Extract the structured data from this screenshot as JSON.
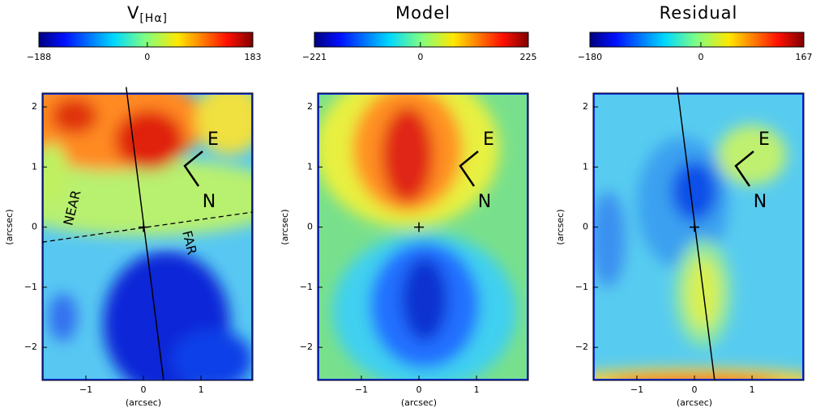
{
  "chart_data": [
    {
      "type": "heatmap",
      "title": "V",
      "title_sub": "[Hα]",
      "colorbar": {
        "range": [
          -188,
          183
        ],
        "ticks": [
          {
            "value": -188,
            "label": "−188"
          },
          0,
          183
        ]
      },
      "xlim": [
        -1.76,
        1.9
      ],
      "ylim": [
        -2.55,
        2.23
      ],
      "xticks": [
        {
          "value": -1,
          "label": "−1"
        },
        0,
        1
      ],
      "yticks": [
        {
          "value": -2,
          "label": "−2"
        },
        {
          "value": -1,
          "label": "−1"
        },
        0,
        1,
        2
      ],
      "xlabel": "(arcsec)",
      "ylabel": "(arcsec)",
      "annotations": [
        "E",
        "N",
        "NEAR",
        "FAR"
      ]
    },
    {
      "type": "heatmap",
      "title": "Model",
      "colorbar": {
        "range": [
          -221,
          225
        ],
        "ticks": [
          {
            "value": -221,
            "label": "−221"
          },
          0,
          225
        ]
      },
      "xlim": [
        -1.76,
        1.9
      ],
      "ylim": [
        -2.55,
        2.23
      ],
      "xticks": [
        {
          "value": -1,
          "label": "−1"
        },
        0,
        1
      ],
      "yticks": [
        {
          "value": -2,
          "label": "−2"
        },
        {
          "value": -1,
          "label": "−1"
        },
        0,
        1,
        2
      ],
      "xlabel": "(arcsec)",
      "ylabel": "(arcsec)",
      "annotations": [
        "E",
        "N"
      ]
    },
    {
      "type": "heatmap",
      "title": "Residual",
      "colorbar": {
        "range": [
          -180,
          167
        ],
        "ticks": [
          {
            "value": -180,
            "label": "−180"
          },
          0,
          167
        ]
      },
      "xlim": [
        -1.76,
        1.9
      ],
      "ylim": [
        -2.55,
        2.23
      ],
      "xticks": [
        {
          "value": -1,
          "label": "−1"
        },
        0,
        1
      ],
      "yticks": [
        {
          "value": -2,
          "label": "−2"
        },
        {
          "value": -1,
          "label": "−1"
        },
        0,
        1,
        2
      ],
      "xlabel": "(arcsec)",
      "ylabel": "(arcsec)",
      "annotations": [
        "E",
        "N"
      ]
    }
  ]
}
